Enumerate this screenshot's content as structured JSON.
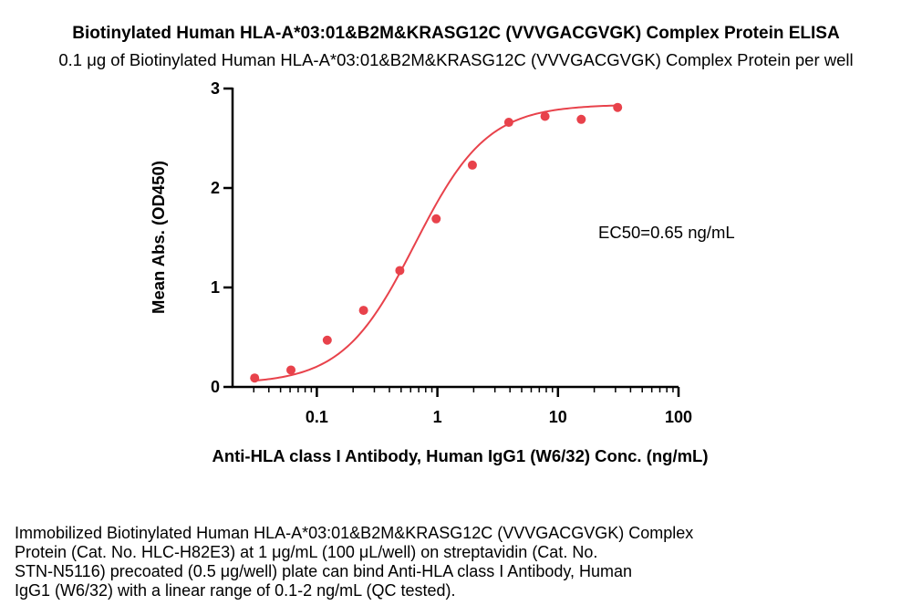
{
  "chart_data": {
    "type": "scatter",
    "title": "Biotinylated Human HLA-A*03:01&B2M&KRASG12C (VVVGACGVGK) Complex Protein ELISA",
    "subtitle": "0.1 μg of Biotinylated Human HLA-A*03:01&B2M&KRASG12C (VVVGACGVGK) Complex Protein per well",
    "xlabel": "Anti-HLA class I Antibody, Human IgG1 (W6/32) Conc. (ng/mL)",
    "ylabel": "Mean Abs. (OD450)",
    "xscale": "log",
    "xlim": [
      0.02,
      100
    ],
    "ylim": [
      0,
      3
    ],
    "xticks": [
      0.1,
      1,
      10,
      100
    ],
    "xtick_labels": [
      "0.1",
      "1",
      "10",
      "100"
    ],
    "yticks": [
      0,
      1,
      2,
      3
    ],
    "ytick_labels": [
      "0",
      "1",
      "2",
      "3"
    ],
    "point_color": "#e8424b",
    "curve_color": "#e8424b",
    "annotation": "EC50=0.65 ng/mL",
    "points": [
      {
        "x": 0.0305,
        "y": 0.09
      },
      {
        "x": 0.061,
        "y": 0.17
      },
      {
        "x": 0.122,
        "y": 0.47
      },
      {
        "x": 0.244,
        "y": 0.77
      },
      {
        "x": 0.488,
        "y": 1.17
      },
      {
        "x": 0.977,
        "y": 1.69
      },
      {
        "x": 1.95,
        "y": 2.23
      },
      {
        "x": 3.91,
        "y": 2.66
      },
      {
        "x": 7.81,
        "y": 2.72
      },
      {
        "x": 15.6,
        "y": 2.69
      },
      {
        "x": 31.25,
        "y": 2.81
      }
    ],
    "fit": {
      "bottom": 0.03,
      "top": 2.84,
      "ec50": 0.65,
      "hill": 1.45
    }
  },
  "caption_lines": [
    "Immobilized Biotinylated Human HLA-A*03:01&B2M&KRASG12C (VVVGACGVGK) Complex",
    "Protein (Cat. No. HLC-H82E3) at 1 μg/mL (100 μL/well) on streptavidin (Cat. No.",
    "STN-N5116) precoated (0.5 μg/well) plate can bind Anti-HLA class I Antibody, Human",
    "IgG1 (W6/32) with a linear range of 0.1-2 ng/mL (QC tested)."
  ]
}
